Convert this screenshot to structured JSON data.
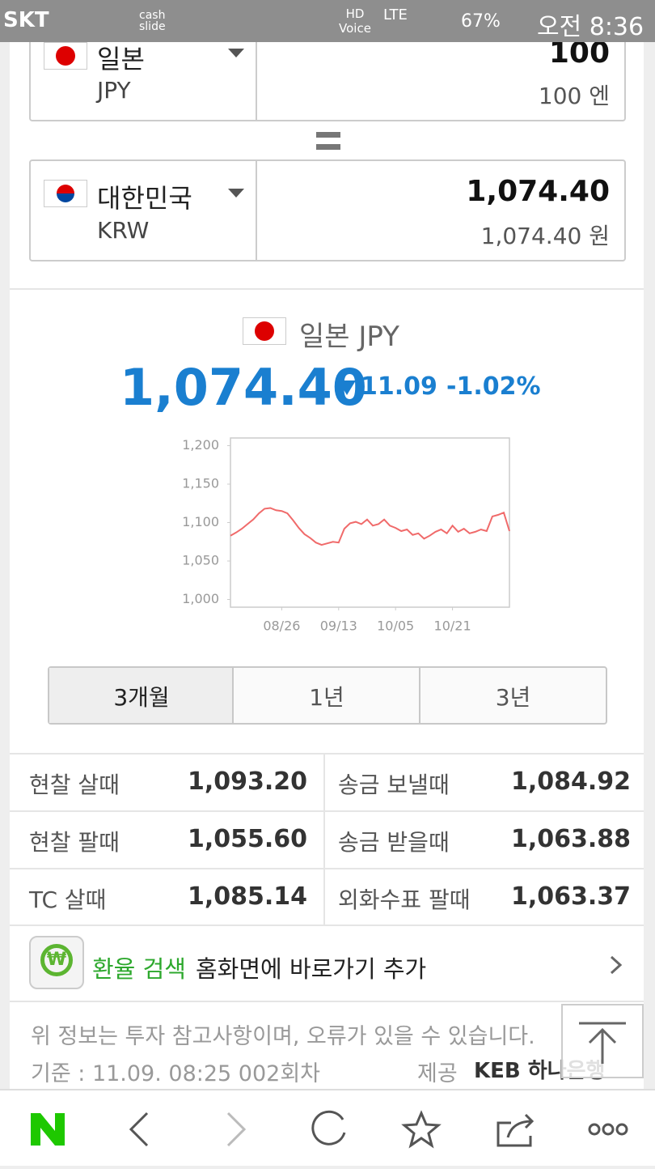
{
  "status_bar": {
    "carrier": "SKT",
    "cash_slide": "cash slide",
    "hd_voice": "HD Voice",
    "network": "LTE",
    "battery": "67%",
    "time": "오전 8:36"
  },
  "converter": {
    "from": {
      "country": "일본",
      "code": "JPY",
      "amount": "100",
      "amount_text": "100 엔"
    },
    "to": {
      "country": "대한민국",
      "code": "KRW",
      "amount": "1,074.40",
      "amount_text": "1,074.40 원"
    }
  },
  "rate": {
    "title": "일본 JPY",
    "value": "1,074.40",
    "change": "11.09",
    "change_pct": "-1.02%"
  },
  "chart_data": {
    "type": "line",
    "color": "#f06a6a",
    "categories": [
      null,
      null,
      null,
      null,
      null,
      null,
      null,
      null,
      null,
      "08/26",
      null,
      null,
      null,
      null,
      null,
      null,
      null,
      null,
      null,
      "09/13",
      null,
      null,
      null,
      null,
      null,
      null,
      null,
      null,
      null,
      "10/05",
      null,
      null,
      null,
      null,
      null,
      null,
      null,
      null,
      null,
      "10/21",
      null,
      null,
      null,
      null,
      null,
      null,
      null,
      null,
      null,
      null
    ],
    "values": [
      1083,
      1087,
      1092,
      1098,
      1104,
      1112,
      1118,
      1119,
      1116,
      1115,
      1112,
      1103,
      1093,
      1085,
      1080,
      1074,
      1071,
      1073,
      1075,
      1074,
      1092,
      1099,
      1101,
      1098,
      1104,
      1096,
      1098,
      1104,
      1096,
      1093,
      1089,
      1091,
      1084,
      1086,
      1079,
      1083,
      1088,
      1091,
      1086,
      1096,
      1088,
      1092,
      1086,
      1088,
      1091,
      1089,
      1108,
      1110,
      1113,
      1089
    ],
    "ylim": [
      990,
      1210
    ],
    "yticks": [
      {
        "value": 1000,
        "label": "1,000"
      },
      {
        "value": 1050,
        "label": "1,050"
      },
      {
        "value": 1100,
        "label": "1,100"
      },
      {
        "value": 1150,
        "label": "1,150"
      },
      {
        "value": 1200,
        "label": "1,200"
      }
    ],
    "grid": false
  },
  "tabs": [
    "3개월",
    "1년",
    "3년"
  ],
  "rates": {
    "rows": [
      [
        "현찰 살때",
        "1,093.20",
        "송금 보낼때",
        "1,084.92"
      ],
      [
        "현찰 팔때",
        "1,055.60",
        "송금 받을때",
        "1,063.88"
      ],
      [
        "TC 살때",
        "1,085.14",
        "외화수표 팔때",
        "1,063.37"
      ]
    ]
  },
  "shortcut": {
    "highlight": "환율 검색",
    "text": "홈화면에 바로가기 추가"
  },
  "footer": {
    "notice": "위 정보는 투자 참고사항이며, 오류가 있을 수 있습니다.",
    "basis": "기준 : 11.09. 08:25 002회차",
    "provider_label": "제공",
    "provider": "KEB 하나은행"
  }
}
